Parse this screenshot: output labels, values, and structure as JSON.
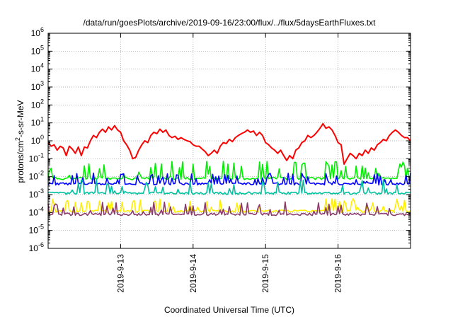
{
  "chart_data": {
    "type": "line",
    "title": "/data/run/goesPlots/archive/2019-09-16/23:00/flux/../flux/5daysEarthFluxes.txt",
    "xlabel": "Coordinated Universal Time (UTC)",
    "ylabel": {
      "prefix": "protons/cm",
      "sup": "2",
      "suffix": "-s-sr-MeV"
    },
    "yscale": "log",
    "ylim": [
      1e-06,
      1000000.0
    ],
    "yticks": [
      {
        "base": "10",
        "exp": "6"
      },
      {
        "base": "10",
        "exp": "5"
      },
      {
        "base": "10",
        "exp": "4"
      },
      {
        "base": "10",
        "exp": "3"
      },
      {
        "base": "10",
        "exp": "2"
      },
      {
        "base": "10",
        "exp": "1"
      },
      {
        "base": "10",
        "exp": "0"
      },
      {
        "base": "10",
        "exp": "-1"
      },
      {
        "base": "10",
        "exp": "-2"
      },
      {
        "base": "10",
        "exp": "-3"
      },
      {
        "base": "10",
        "exp": "-4"
      },
      {
        "base": "10",
        "exp": "-5"
      },
      {
        "base": "10",
        "exp": "-6"
      }
    ],
    "xlim": [
      "2019-09-12T00:00",
      "2019-09-17T00:00"
    ],
    "xticks": [
      "2019-9-13",
      "2019-9-14",
      "2019-9-15",
      "2019-9-16"
    ],
    "grid": true,
    "series": [
      {
        "color": "#ff0000",
        "points": [
          [
            "2019-09-12T00:00",
            0.8
          ],
          [
            "2019-09-12T01:00",
            0.5
          ],
          [
            "2019-09-12T02:00",
            0.6
          ],
          [
            "2019-09-12T03:00",
            0.3
          ],
          [
            "2019-09-12T04:00",
            0.5
          ],
          [
            "2019-09-12T05:00",
            0.4
          ],
          [
            "2019-09-12T06:00",
            0.15
          ],
          [
            "2019-09-12T07:00",
            0.5
          ],
          [
            "2019-09-12T08:00",
            0.35
          ],
          [
            "2019-09-12T09:00",
            0.2
          ],
          [
            "2019-09-12T10:00",
            0.45
          ],
          [
            "2019-09-12T11:00",
            0.15
          ],
          [
            "2019-09-12T12:00",
            0.45
          ],
          [
            "2019-09-12T13:00",
            0.4
          ],
          [
            "2019-09-12T14:00",
            1.0
          ],
          [
            "2019-09-12T15:00",
            2.0
          ],
          [
            "2019-09-12T16:00",
            1.5
          ],
          [
            "2019-09-12T17:00",
            3.0
          ],
          [
            "2019-09-12T18:00",
            4.5
          ],
          [
            "2019-09-12T19:00",
            3.0
          ],
          [
            "2019-09-12T20:00",
            6.0
          ],
          [
            "2019-09-12T21:00",
            4.0
          ],
          [
            "2019-09-12T22:00",
            7.0
          ],
          [
            "2019-09-12T23:00",
            4.0
          ],
          [
            "2019-09-13T00:00",
            3.0
          ],
          [
            "2019-09-13T01:00",
            1.0
          ],
          [
            "2019-09-13T02:00",
            0.6
          ],
          [
            "2019-09-13T03:00",
            0.3
          ],
          [
            "2019-09-13T04:00",
            0.1
          ],
          [
            "2019-09-13T05:00",
            0.12
          ],
          [
            "2019-09-13T06:00",
            0.3
          ],
          [
            "2019-09-13T07:00",
            0.6
          ],
          [
            "2019-09-13T08:00",
            1.0
          ],
          [
            "2019-09-13T09:00",
            0.8
          ],
          [
            "2019-09-13T10:00",
            2.0
          ],
          [
            "2019-09-13T11:00",
            3.0
          ],
          [
            "2019-09-13T12:00",
            2.5
          ],
          [
            "2019-09-13T13:00",
            4.5
          ],
          [
            "2019-09-13T14:00",
            3.0
          ],
          [
            "2019-09-13T15:00",
            4.0
          ],
          [
            "2019-09-13T16:00",
            2.0
          ],
          [
            "2019-09-13T17:00",
            1.5
          ],
          [
            "2019-09-13T18:00",
            1.8
          ],
          [
            "2019-09-13T19:00",
            1.2
          ],
          [
            "2019-09-13T20:00",
            1.5
          ],
          [
            "2019-09-13T21:00",
            1.2
          ],
          [
            "2019-09-13T22:00",
            1.0
          ],
          [
            "2019-09-13T23:00",
            0.9
          ],
          [
            "2019-09-14T00:00",
            0.6
          ],
          [
            "2019-09-14T01:00",
            0.5
          ],
          [
            "2019-09-14T02:00",
            0.5
          ],
          [
            "2019-09-14T03:00",
            0.35
          ],
          [
            "2019-09-14T04:00",
            0.25
          ],
          [
            "2019-09-14T05:00",
            0.15
          ],
          [
            "2019-09-14T06:00",
            0.2
          ],
          [
            "2019-09-14T07:00",
            0.3
          ],
          [
            "2019-09-14T08:00",
            0.2
          ],
          [
            "2019-09-14T09:00",
            0.5
          ],
          [
            "2019-09-14T10:00",
            0.8
          ],
          [
            "2019-09-14T11:00",
            0.7
          ],
          [
            "2019-09-14T12:00",
            1.2
          ],
          [
            "2019-09-14T13:00",
            0.9
          ],
          [
            "2019-09-14T14:00",
            1.5
          ],
          [
            "2019-09-14T15:00",
            2.0
          ],
          [
            "2019-09-14T16:00",
            2.5
          ],
          [
            "2019-09-14T17:00",
            3.0
          ],
          [
            "2019-09-14T18:00",
            4.0
          ],
          [
            "2019-09-14T19:00",
            3.0
          ],
          [
            "2019-09-14T20:00",
            3.5
          ],
          [
            "2019-09-14T21:00",
            2.0
          ],
          [
            "2019-09-14T22:00",
            3.0
          ],
          [
            "2019-09-14T23:00",
            2.0
          ],
          [
            "2019-09-15T00:00",
            0.8
          ],
          [
            "2019-09-15T01:00",
            0.6
          ],
          [
            "2019-09-15T02:00",
            0.4
          ],
          [
            "2019-09-15T03:00",
            0.3
          ],
          [
            "2019-09-15T04:00",
            0.2
          ],
          [
            "2019-09-15T05:00",
            0.3
          ],
          [
            "2019-09-15T06:00",
            0.15
          ],
          [
            "2019-09-15T07:00",
            0.08
          ],
          [
            "2019-09-15T08:00",
            0.15
          ],
          [
            "2019-09-15T09:00",
            0.1
          ],
          [
            "2019-09-15T10:00",
            0.3
          ],
          [
            "2019-09-15T11:00",
            0.4
          ],
          [
            "2019-09-15T12:00",
            0.8
          ],
          [
            "2019-09-15T13:00",
            1.0
          ],
          [
            "2019-09-15T14:00",
            2.0
          ],
          [
            "2019-09-15T15:00",
            1.5
          ],
          [
            "2019-09-15T16:00",
            2.0
          ],
          [
            "2019-09-15T17:00",
            3.0
          ],
          [
            "2019-09-15T18:00",
            5.0
          ],
          [
            "2019-09-15T19:00",
            9.0
          ],
          [
            "2019-09-15T20:00",
            5.0
          ],
          [
            "2019-09-15T21:00",
            6.0
          ],
          [
            "2019-09-15T22:00",
            4.0
          ],
          [
            "2019-09-15T23:00",
            2.0
          ],
          [
            "2019-09-16T00:00",
            0.8
          ],
          [
            "2019-09-16T01:00",
            0.6
          ],
          [
            "2019-09-16T02:00",
            0.05
          ],
          [
            "2019-09-16T03:00",
            0.1
          ],
          [
            "2019-09-16T04:00",
            0.2
          ],
          [
            "2019-09-16T05:00",
            0.15
          ],
          [
            "2019-09-16T06:00",
            0.1
          ],
          [
            "2019-09-16T07:00",
            0.2
          ],
          [
            "2019-09-16T08:00",
            0.15
          ],
          [
            "2019-09-16T09:00",
            0.3
          ],
          [
            "2019-09-16T10:00",
            0.2
          ],
          [
            "2019-09-16T11:00",
            0.4
          ],
          [
            "2019-09-16T12:00",
            0.3
          ],
          [
            "2019-09-16T13:00",
            0.6
          ],
          [
            "2019-09-16T14:00",
            0.8
          ],
          [
            "2019-09-16T15:00",
            1.2
          ],
          [
            "2019-09-16T16:00",
            1.0
          ],
          [
            "2019-09-16T17:00",
            2.0
          ],
          [
            "2019-09-16T18:00",
            3.0
          ],
          [
            "2019-09-16T19:00",
            4.0
          ],
          [
            "2019-09-16T20:00",
            3.0
          ],
          [
            "2019-09-16T21:00",
            2.0
          ],
          [
            "2019-09-16T22:00",
            1.5
          ],
          [
            "2019-09-16T23:00",
            1.5
          ],
          [
            "2019-09-17T00:00",
            1.0
          ]
        ]
      },
      {
        "color": "#00ee00",
        "base": 0.008,
        "amp": 8,
        "count": 60,
        "seed": 11
      },
      {
        "color": "#0000ff",
        "base": 0.004,
        "amp": 3,
        "count": 55,
        "seed": 23
      },
      {
        "color": "#00c0a0",
        "base": 0.0012,
        "amp": 5,
        "count": 40,
        "seed": 37
      },
      {
        "color": "#ffee00",
        "base": 0.00012,
        "amp": 4,
        "count": 50,
        "seed": 41
      },
      {
        "color": "#8b3a6b",
        "base": 8e-05,
        "amp": 4,
        "count": 50,
        "seed": 53
      }
    ]
  }
}
